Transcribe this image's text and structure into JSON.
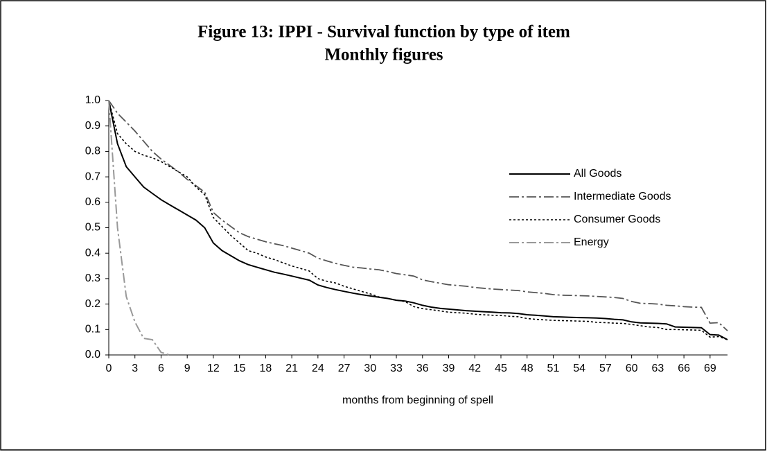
{
  "chart_data": {
    "type": "line",
    "title": "Figure 13: IPPI - Survival function by type of item",
    "subtitle": "Monthly figures",
    "x_label": "months from beginning of spell",
    "x": [
      0,
      1,
      2,
      3,
      4,
      5,
      6,
      7,
      8,
      9,
      10,
      11,
      12,
      13,
      14,
      15,
      16,
      17,
      18,
      19,
      20,
      21,
      22,
      23,
      24,
      25,
      26,
      27,
      28,
      29,
      30,
      31,
      32,
      33,
      34,
      35,
      36,
      37,
      38,
      39,
      40,
      41,
      42,
      43,
      44,
      45,
      46,
      47,
      48,
      49,
      50,
      51,
      52,
      53,
      54,
      55,
      56,
      57,
      58,
      59,
      60,
      61,
      62,
      63,
      64,
      65,
      66,
      67,
      68,
      69,
      70,
      71
    ],
    "xlim": [
      0,
      71
    ],
    "xticks": [
      0,
      3,
      6,
      9,
      12,
      15,
      18,
      21,
      24,
      27,
      30,
      33,
      36,
      39,
      42,
      45,
      48,
      51,
      54,
      57,
      60,
      63,
      66,
      69
    ],
    "ylim": [
      0,
      1
    ],
    "yticks": [
      {
        "value": 0,
        "label": "0.0"
      },
      0.1,
      0.2,
      0.3,
      0.4,
      0.5,
      0.6,
      0.7,
      0.8,
      0.9,
      {
        "value": 1,
        "label": "1.0"
      }
    ],
    "grid": false,
    "legend": "right",
    "series": [
      {
        "name": "All Goods",
        "color": "#000000",
        "dash": "none",
        "width": 2,
        "values": [
          1.0,
          0.83,
          0.74,
          0.7,
          0.66,
          0.635,
          0.61,
          0.59,
          0.57,
          0.55,
          0.53,
          0.5,
          0.44,
          0.41,
          0.39,
          0.37,
          0.355,
          0.345,
          0.335,
          0.325,
          0.318,
          0.31,
          0.302,
          0.294,
          0.275,
          0.265,
          0.257,
          0.25,
          0.243,
          0.237,
          0.232,
          0.227,
          0.222,
          0.215,
          0.212,
          0.205,
          0.195,
          0.188,
          0.183,
          0.18,
          0.177,
          0.174,
          0.172,
          0.17,
          0.168,
          0.166,
          0.165,
          0.163,
          0.158,
          0.156,
          0.153,
          0.15,
          0.149,
          0.148,
          0.147,
          0.146,
          0.145,
          0.143,
          0.14,
          0.138,
          0.13,
          0.126,
          0.125,
          0.124,
          0.122,
          0.11,
          0.109,
          0.108,
          0.107,
          0.08,
          0.078,
          0.06
        ]
      },
      {
        "name": "Intermediate Goods",
        "color": "#555555",
        "dash": "14 4 3 4",
        "width": 1.8,
        "values": [
          1.0,
          0.95,
          0.915,
          0.88,
          0.84,
          0.8,
          0.77,
          0.745,
          0.72,
          0.69,
          0.665,
          0.64,
          0.56,
          0.53,
          0.505,
          0.48,
          0.465,
          0.455,
          0.445,
          0.437,
          0.43,
          0.42,
          0.41,
          0.4,
          0.38,
          0.37,
          0.36,
          0.352,
          0.345,
          0.342,
          0.338,
          0.335,
          0.328,
          0.32,
          0.315,
          0.31,
          0.295,
          0.288,
          0.282,
          0.276,
          0.273,
          0.27,
          0.265,
          0.262,
          0.259,
          0.257,
          0.255,
          0.253,
          0.248,
          0.245,
          0.242,
          0.237,
          0.235,
          0.234,
          0.233,
          0.232,
          0.23,
          0.228,
          0.226,
          0.222,
          0.21,
          0.203,
          0.202,
          0.2,
          0.195,
          0.193,
          0.19,
          0.188,
          0.187,
          0.125,
          0.127,
          0.095
        ]
      },
      {
        "name": "Consumer Goods",
        "color": "#000000",
        "dash": "3 3",
        "width": 1.6,
        "values": [
          1.0,
          0.87,
          0.83,
          0.8,
          0.785,
          0.775,
          0.76,
          0.74,
          0.72,
          0.7,
          0.66,
          0.63,
          0.54,
          0.505,
          0.47,
          0.44,
          0.41,
          0.4,
          0.385,
          0.375,
          0.362,
          0.35,
          0.34,
          0.33,
          0.3,
          0.29,
          0.283,
          0.27,
          0.26,
          0.25,
          0.24,
          0.228,
          0.222,
          0.215,
          0.21,
          0.19,
          0.182,
          0.178,
          0.173,
          0.168,
          0.166,
          0.164,
          0.16,
          0.158,
          0.156,
          0.155,
          0.152,
          0.15,
          0.143,
          0.14,
          0.138,
          0.136,
          0.135,
          0.134,
          0.133,
          0.132,
          0.128,
          0.127,
          0.125,
          0.124,
          0.12,
          0.115,
          0.11,
          0.108,
          0.1,
          0.1,
          0.099,
          0.098,
          0.097,
          0.07,
          0.072,
          0.06
        ]
      },
      {
        "name": "Energy",
        "color": "#999999",
        "dash": "14 4 3 4",
        "width": 2,
        "values": [
          1.0,
          0.5,
          0.23,
          0.13,
          0.065,
          0.06,
          0.01,
          0.0,
          null,
          null,
          null,
          null,
          null,
          null,
          null,
          null,
          null,
          null,
          null,
          null,
          null,
          null,
          null,
          null,
          null,
          null,
          null,
          null,
          null,
          null,
          null,
          null,
          null,
          null,
          null,
          null,
          null,
          null,
          null,
          null,
          null,
          null,
          null,
          null,
          null,
          null,
          null,
          null,
          null,
          null,
          null,
          null,
          null,
          null,
          null,
          null,
          null,
          null,
          null,
          null,
          null,
          null,
          null,
          null,
          null,
          null,
          null,
          null,
          null,
          null,
          null,
          null
        ]
      }
    ]
  }
}
